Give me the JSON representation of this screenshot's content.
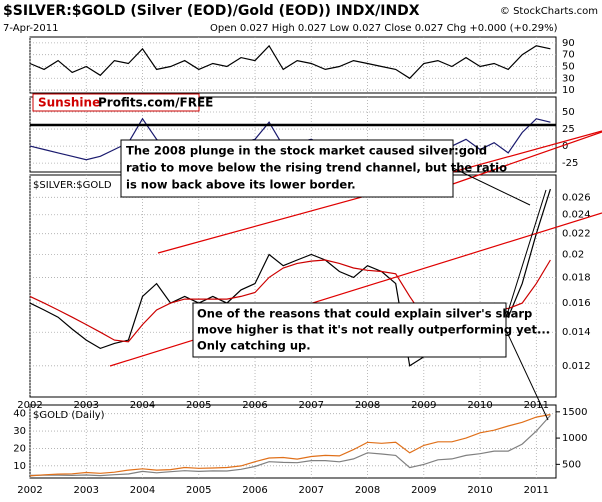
{
  "header": {
    "title": "$SILVER:$GOLD (Silver (EOD)/Gold (EOD)) INDX/INDX",
    "date": "7-Apr-2011",
    "quote": "Open 0.027 High 0.027 Low 0.027 Close 0.027 Chg +0.000 (+0.29%)",
    "credit": "© StockCharts.com",
    "logo": [
      "Sunshine",
      "Profits.com/FREE"
    ]
  },
  "chart_data": [
    {
      "type": "line",
      "x": [
        2002,
        2002.25,
        2002.5,
        2002.75,
        2003,
        2003.25,
        2003.5,
        2003.75,
        2004,
        2004.25,
        2004.5,
        2004.75,
        2005,
        2005.25,
        2005.5,
        2005.75,
        2006,
        2006.25,
        2006.5,
        2006.75,
        2007,
        2007.25,
        2007.5,
        2007.75,
        2008,
        2008.25,
        2008.5,
        2008.75,
        2009,
        2009.25,
        2009.5,
        2009.75,
        2010,
        2010.25,
        2010.5,
        2010.75,
        2011,
        2011.25
      ],
      "series": [
        {
          "color": "#000000",
          "values": [
            55,
            45,
            60,
            40,
            50,
            35,
            60,
            55,
            80,
            45,
            50,
            60,
            45,
            55,
            50,
            65,
            60,
            85,
            45,
            60,
            55,
            45,
            50,
            60,
            55,
            50,
            45,
            30,
            55,
            60,
            50,
            65,
            50,
            55,
            45,
            70,
            85,
            80
          ]
        }
      ],
      "xlim": [
        2002,
        2011.35
      ],
      "xticks": [
        2002,
        2003,
        2004,
        2005,
        2006,
        2007,
        2008,
        2009,
        2010,
        2011
      ],
      "ylim": [
        5,
        100
      ],
      "yticks": [
        90,
        70,
        50,
        30,
        10
      ],
      "grid": true
    },
    {
      "type": "line",
      "x": [
        2002,
        2002.25,
        2002.5,
        2002.75,
        2003,
        2003.25,
        2003.5,
        2003.75,
        2004,
        2004.25,
        2004.5,
        2004.75,
        2005,
        2005.25,
        2005.5,
        2005.75,
        2006,
        2006.25,
        2006.5,
        2006.75,
        2007,
        2007.25,
        2007.5,
        2007.75,
        2008,
        2008.25,
        2008.5,
        2008.75,
        2009,
        2009.25,
        2009.5,
        2009.75,
        2010,
        2010.25,
        2010.5,
        2010.75,
        2011,
        2011.25
      ],
      "series": [
        {
          "color": "#1a1a6e",
          "values": [
            0,
            -5,
            -10,
            -15,
            -20,
            -15,
            -5,
            5,
            40,
            10,
            -5,
            5,
            -10,
            0,
            -5,
            5,
            10,
            35,
            0,
            5,
            10,
            0,
            -10,
            -5,
            5,
            0,
            -5,
            -35,
            -20,
            5,
            0,
            10,
            -5,
            5,
            -10,
            20,
            40,
            35
          ]
        }
      ],
      "xlim": [
        2002,
        2011.35
      ],
      "xticks": [
        2002,
        2003,
        2004,
        2005,
        2006,
        2007,
        2008,
        2009,
        2010,
        2011
      ],
      "ylim": [
        -38,
        72
      ],
      "yticks": [
        50,
        25,
        0,
        -25
      ],
      "grid": true
    },
    {
      "type": "line",
      "title": "$SILVER:$GOLD",
      "log": true,
      "x": [
        2002,
        2002.25,
        2002.5,
        2002.75,
        2003,
        2003.25,
        2003.5,
        2003.75,
        2004,
        2004.25,
        2004.5,
        2004.75,
        2005,
        2005.25,
        2005.5,
        2005.75,
        2006,
        2006.25,
        2006.5,
        2006.75,
        2007,
        2007.25,
        2007.5,
        2007.75,
        2008,
        2008.25,
        2008.5,
        2008.75,
        2009,
        2009.25,
        2009.5,
        2009.75,
        2010,
        2010.25,
        2010.5,
        2010.75,
        2011,
        2011.25
      ],
      "series": [
        {
          "color": "#000000",
          "values": [
            0.016,
            0.0155,
            0.015,
            0.0142,
            0.0135,
            0.013,
            0.0133,
            0.0135,
            0.0165,
            0.0175,
            0.016,
            0.0165,
            0.016,
            0.0165,
            0.016,
            0.017,
            0.0175,
            0.02,
            0.019,
            0.0195,
            0.02,
            0.0195,
            0.0185,
            0.018,
            0.019,
            0.0185,
            0.0175,
            0.012,
            0.0125,
            0.0145,
            0.015,
            0.016,
            0.0155,
            0.016,
            0.015,
            0.0175,
            0.022,
            0.027
          ]
        },
        {
          "color": "#cc0000",
          "values": [
            0.0165,
            0.016,
            0.0155,
            0.015,
            0.0145,
            0.014,
            0.0135,
            0.0134,
            0.0145,
            0.0155,
            0.016,
            0.0163,
            0.0163,
            0.0163,
            0.0163,
            0.0165,
            0.0168,
            0.018,
            0.0188,
            0.0192,
            0.0194,
            0.0195,
            0.0192,
            0.0188,
            0.0186,
            0.0185,
            0.0183,
            0.0165,
            0.015,
            0.0142,
            0.0143,
            0.015,
            0.0155,
            0.0157,
            0.0156,
            0.016,
            0.0175,
            0.0195
          ]
        }
      ],
      "xlim": [
        2002,
        2011.35
      ],
      "xticks": [
        2002,
        2003,
        2004,
        2005,
        2006,
        2007,
        2008,
        2009,
        2010,
        2011
      ],
      "ylim": [
        0.0104,
        0.0288
      ],
      "yticks": [
        0.026,
        0.024,
        0.022,
        0.02,
        0.018,
        0.016,
        0.014,
        0.012
      ],
      "grid": true,
      "annotations": [
        [
          "The 2008 plunge in the stock market caused silver:gold",
          "ratio to move below the rising trend channel, but the ratio",
          "is now back above its lower border."
        ],
        [
          "One of the reasons that could explain silver's sharp",
          "move higher is that it's not really outperforming yet...",
          "Only catching up."
        ]
      ]
    },
    {
      "type": "line",
      "title": "$GOLD (Daily)",
      "x": [
        2002,
        2002.25,
        2002.5,
        2002.75,
        2003,
        2003.25,
        2003.5,
        2003.75,
        2004,
        2004.25,
        2004.5,
        2004.75,
        2005,
        2005.25,
        2005.5,
        2005.75,
        2006,
        2006.25,
        2006.5,
        2006.75,
        2007,
        2007.25,
        2007.5,
        2007.75,
        2008,
        2008.25,
        2008.5,
        2008.75,
        2009,
        2009.25,
        2009.5,
        2009.75,
        2010,
        2010.25,
        2010.5,
        2010.75,
        2011,
        2011.25
      ],
      "series": [
        {
          "color": "#808080",
          "values": [
            4.5,
            4.6,
            4.6,
            4.5,
            4.7,
            4.4,
            4.9,
            5.3,
            6.8,
            6.0,
            6.6,
            7.2,
            6.8,
            7.1,
            7.0,
            8.0,
            9.6,
            12.4,
            12.0,
            11.8,
            13.0,
            13.0,
            12.3,
            14.0,
            17.5,
            16.8,
            16.0,
            9.0,
            10.8,
            13.5,
            14.0,
            16.0,
            17.0,
            18.5,
            18.5,
            22.5,
            30.0,
            39.0
          ]
        },
        {
          "color": "#e0701a",
          "axis": "y2",
          "values": [
            280,
            300,
            315,
            320,
            345,
            330,
            350,
            390,
            415,
            390,
            400,
            440,
            425,
            430,
            440,
            470,
            550,
            620,
            630,
            600,
            650,
            670,
            660,
            780,
            920,
            900,
            920,
            720,
            860,
            930,
            930,
            1000,
            1100,
            1150,
            1230,
            1300,
            1400,
            1450
          ]
        }
      ],
      "xlim": [
        2002,
        2011.35
      ],
      "xticks": [
        2002,
        2003,
        2004,
        2005,
        2006,
        2007,
        2008,
        2009,
        2010,
        2011
      ],
      "ylim": [
        3,
        45
      ],
      "yticks": [
        40,
        30,
        20,
        10
      ],
      "y2lim": [
        240,
        1630
      ],
      "y2ticks": [
        1500,
        1000,
        500
      ],
      "grid": true
    }
  ]
}
